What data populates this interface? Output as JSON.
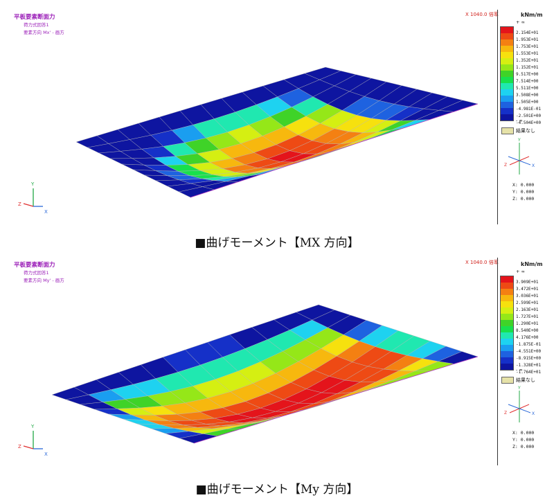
{
  "panels": [
    {
      "title": "平板要素断面力",
      "line2": "荷力式回答1",
      "line3": "要素方向 Mx' - 画方",
      "scale": "X 1040.0 倍率",
      "unit": "kNm/m",
      "top_inf": "+ ∞",
      "bottom_inf": "- ∞",
      "colors": [
        "#e4141b",
        "#ee4a14",
        "#f48012",
        "#f7b80e",
        "#f6e10e",
        "#d5ef12",
        "#95e718",
        "#3fd328",
        "#18e04c",
        "#20e8b0",
        "#1ed2f0",
        "#1a9ef0",
        "#1e62e0",
        "#1530c8",
        "#0e15a0"
      ],
      "labels": [
        "2.154E+01",
        "1.953E+01",
        "1.753E+01",
        "1.553E+01",
        "1.352E+01",
        "1.152E+01",
        "9.517E+00",
        "7.514E+00",
        "5.511E+00",
        "3.508E+00",
        "1.505E+00",
        "-4.981E-01",
        "-2.501E+00",
        "-4.504E+00"
      ],
      "no_result": "結果なし",
      "coords": [
        "X: 0.000",
        "Y: 0.000",
        "Z: 0.000"
      ],
      "caption": "■曲げモーメント【MX 方向】"
    },
    {
      "title": "平板要素断面力",
      "line2": "荷力式回答1",
      "line3": "要素方向 My' - 画方",
      "scale": "X 1040.0 倍率",
      "unit": "kNm/m",
      "top_inf": "+ ∞",
      "bottom_inf": "- ∞",
      "colors": [
        "#e4141b",
        "#ee4a14",
        "#f48012",
        "#f7b80e",
        "#f6e10e",
        "#d5ef12",
        "#95e718",
        "#3fd328",
        "#18e04c",
        "#20e8b0",
        "#1ed2f0",
        "#1a9ef0",
        "#1e62e0",
        "#1530c8",
        "#0e15a0"
      ],
      "labels": [
        "3.909E+01",
        "3.472E+01",
        "3.036E+01",
        "2.599E+01",
        "2.163E+01",
        "1.727E+01",
        "1.290E+01",
        "8.540E+00",
        "4.176E+00",
        "-1.875E-01",
        "-4.551E+00",
        "-8.915E+00",
        "-1.328E+01",
        "-1.764E+01"
      ],
      "no_result": "結果なし",
      "coords": [
        "X: 0.000",
        "Y: 0.000",
        "Z: 0.000"
      ],
      "caption": "■曲げモーメント【My 方向】"
    }
  ],
  "axis_labels": {
    "x": "X",
    "y": "Y",
    "z": "Z"
  }
}
